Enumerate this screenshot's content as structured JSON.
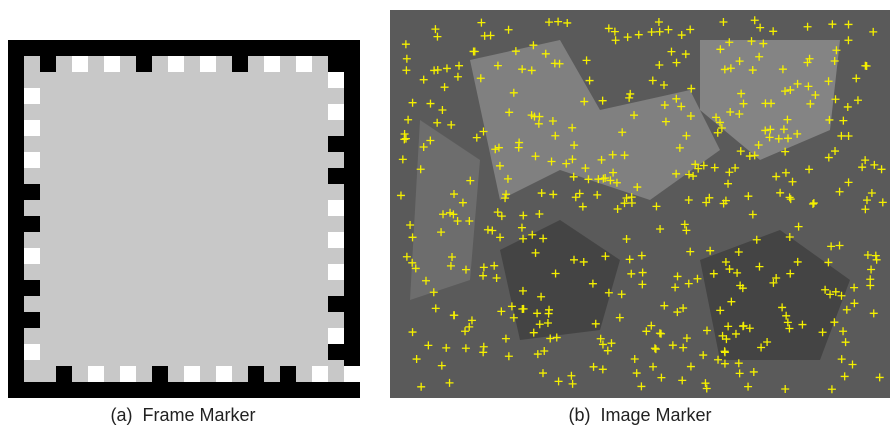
{
  "figure": {
    "panels": [
      {
        "caption": "(a)  Frame Marker"
      },
      {
        "caption": "(b)  Image Marker"
      }
    ]
  }
}
